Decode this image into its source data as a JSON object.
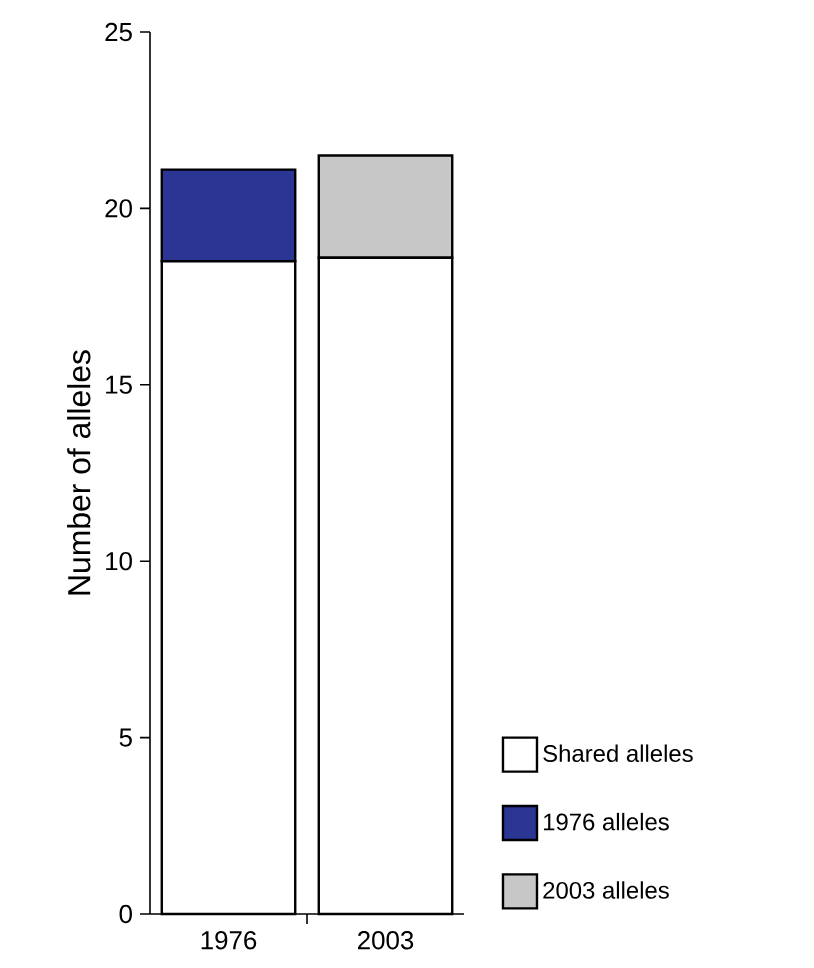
{
  "chart_data": {
    "type": "bar",
    "stacked": true,
    "ylabel": "Number of alleles",
    "categories": [
      "1976",
      "2003"
    ],
    "series": [
      {
        "name": "Shared alleles",
        "color": "#ffffff",
        "values": [
          18.5,
          18.6
        ]
      },
      {
        "name": "1976 alleles",
        "color": "#2b3593",
        "values": [
          2.6,
          null
        ]
      },
      {
        "name": "2003 alleles",
        "color": "#c6c7c6",
        "values": [
          null,
          2.9
        ]
      }
    ],
    "ylim": [
      0,
      25
    ],
    "yticks": [
      0,
      5,
      10,
      15,
      20,
      25
    ],
    "grid": false,
    "legend": "bottom right"
  }
}
